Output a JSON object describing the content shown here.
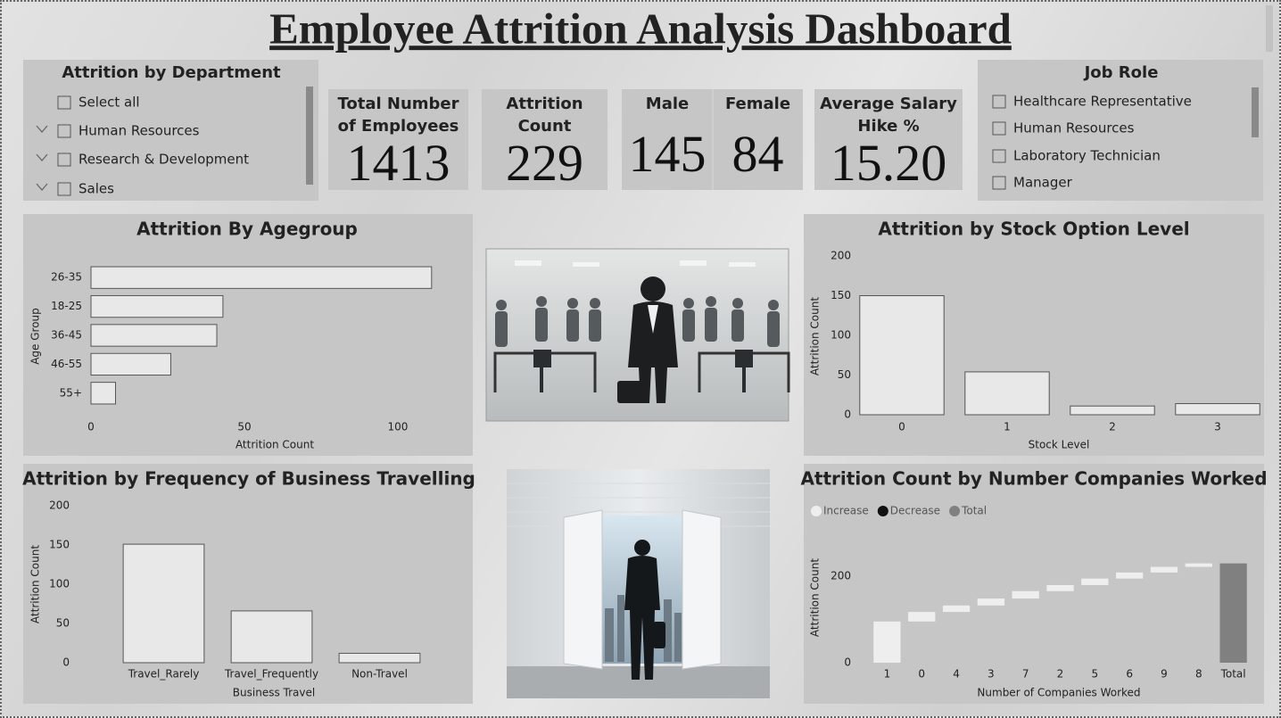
{
  "title": "Employee Attrition Analysis Dashboard",
  "department_slicer": {
    "title": "Attrition by Department",
    "items": [
      "Select all",
      "Human Resources",
      "Research & Development",
      "Sales"
    ]
  },
  "job_role_slicer": {
    "title": "Job Role",
    "items": [
      "Healthcare Representative",
      "Human Resources",
      "Laboratory Technician",
      "Manager"
    ]
  },
  "kpis": [
    {
      "label": "Total Number of Employees",
      "value": 1413
    },
    {
      "label": "Attrition Count",
      "value": 229
    },
    {
      "label": "Male",
      "value": 145
    },
    {
      "label": "Female",
      "value": 84
    },
    {
      "label": "Average Salary Hike %",
      "value": "15.20"
    }
  ],
  "chart_data": [
    {
      "type": "hbar",
      "title": "Attrition By Agegroup",
      "x_label": "Attrition Count",
      "y_label": "Age Group",
      "categories": [
        "26-35",
        "18-25",
        "36-45",
        "46-55",
        "55+"
      ],
      "values": [
        111,
        43,
        41,
        26,
        8
      ],
      "color": "#e8e8e8",
      "xlim": [
        0,
        116
      ],
      "xticks": [
        0,
        50,
        100
      ]
    },
    {
      "type": "bar",
      "title": "Attrition by Stock Option Level",
      "x_label": "Stock Level",
      "y_label": "Attrition Count",
      "categories": [
        "0",
        "1",
        "2",
        "3"
      ],
      "values": [
        150,
        54,
        11,
        14
      ],
      "color": "#e8e8e8",
      "ylim": [
        0,
        200
      ],
      "yticks": [
        0,
        50,
        100,
        150,
        200
      ]
    },
    {
      "type": "bar",
      "title": "Attrition by Frequency of Business Travelling",
      "x_label": "Business Travel",
      "y_label": "Attrition Count",
      "categories": [
        "Travel_Rarely",
        "Travel_Frequently",
        "Non-Travel"
      ],
      "values": [
        151,
        66,
        12
      ],
      "color": "#e8e8e8",
      "ylim": [
        0,
        200
      ],
      "yticks": [
        0,
        50,
        100,
        150,
        200
      ]
    },
    {
      "type": "waterfall",
      "title": "Attrition Count by Number Companies Worked",
      "x_label": "Number of Companies Worked",
      "y_label": "Attrition Count",
      "legend": [
        {
          "name": "Increase",
          "color": "#eeeeee"
        },
        {
          "name": "Decrease",
          "color": "#111111"
        },
        {
          "name": "Total",
          "color": "#808080"
        }
      ],
      "categories": [
        "1",
        "0",
        "4",
        "3",
        "7",
        "2",
        "5",
        "6",
        "9",
        "8",
        "Total"
      ],
      "values": [
        95,
        22,
        15,
        16,
        17,
        14,
        15,
        14,
        13,
        8,
        229
      ],
      "ylim": [
        0,
        290
      ],
      "yticks": [
        0,
        200
      ]
    }
  ]
}
